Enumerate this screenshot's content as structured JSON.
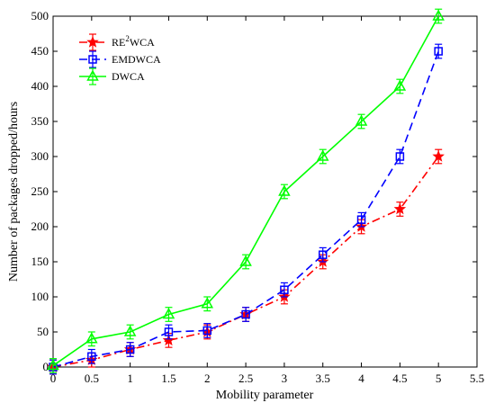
{
  "chart_data": {
    "type": "line",
    "title": "",
    "xlabel": "Mobility parameter",
    "ylabel": "Number of packages dropped/hours",
    "xlim": [
      0,
      5.5
    ],
    "ylim": [
      0,
      500
    ],
    "xticks": [
      "0",
      "0.5",
      "1",
      "1.5",
      "2",
      "2.5",
      "3",
      "3.5",
      "4",
      "4.5",
      "5",
      "5.5"
    ],
    "yticks": [
      "0",
      "50",
      "100",
      "150",
      "200",
      "250",
      "300",
      "350",
      "400",
      "450",
      "500"
    ],
    "x": [
      0,
      0.5,
      1,
      1.5,
      2,
      2.5,
      3,
      3.5,
      4,
      4.5,
      5
    ],
    "error_bar": 10,
    "grid": false,
    "legend_position": "top-left",
    "series": [
      {
        "name": "RE",
        "name_sup": "2",
        "name_suffix": "WCA",
        "color": "#ff0000",
        "line_style": "dash-dot",
        "marker": "star",
        "values": [
          0,
          10,
          25,
          38,
          50,
          75,
          100,
          150,
          200,
          225,
          300
        ]
      },
      {
        "name": "EMDWCA",
        "color": "#0000ff",
        "line_style": "dashed",
        "marker": "square",
        "values": [
          0,
          15,
          25,
          50,
          52,
          75,
          110,
          160,
          210,
          300,
          450
        ]
      },
      {
        "name": "DWCA",
        "color": "#00ff00",
        "line_style": "solid",
        "marker": "triangle",
        "values": [
          2,
          40,
          50,
          75,
          90,
          150,
          250,
          300,
          350,
          400,
          500
        ]
      }
    ]
  }
}
